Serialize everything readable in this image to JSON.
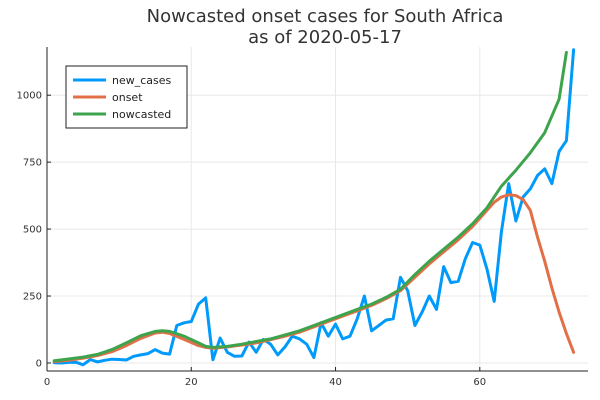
{
  "chart_data": {
    "type": "line",
    "title_line1": "Nowcasted onset cases for South Africa",
    "title_line2": "as of 2020-05-17",
    "xlabel": "",
    "ylabel": "",
    "xlim": [
      0,
      75
    ],
    "ylim": [
      -30,
      1180
    ],
    "xticks": [
      0,
      20,
      40,
      60
    ],
    "yticks": [
      0,
      250,
      500,
      750,
      1000
    ],
    "grid": true,
    "legend_position": "top-left",
    "series": [
      {
        "name": "new_cases",
        "color": "#009AFA",
        "x": [
          1,
          2,
          3,
          4,
          5,
          6,
          7,
          8,
          9,
          10,
          11,
          12,
          13,
          14,
          15,
          16,
          17,
          18,
          19,
          20,
          21,
          22,
          23,
          24,
          25,
          26,
          27,
          28,
          29,
          30,
          31,
          32,
          33,
          34,
          35,
          36,
          37,
          38,
          39,
          40,
          41,
          42,
          43,
          44,
          45,
          46,
          47,
          48,
          49,
          50,
          51,
          52,
          53,
          54,
          55,
          56,
          57,
          58,
          59,
          60,
          61,
          62,
          63,
          64,
          65,
          66,
          67,
          68,
          69,
          70,
          71,
          72,
          73
        ],
        "y": [
          1,
          0,
          2,
          3,
          -7,
          13,
          4,
          10,
          14,
          13,
          11,
          25,
          30,
          35,
          50,
          37,
          33,
          140,
          150,
          155,
          220,
          243,
          12,
          93,
          40,
          25,
          26,
          78,
          40,
          88,
          70,
          30,
          60,
          100,
          90,
          70,
          20,
          150,
          100,
          145,
          90,
          100,
          165,
          250,
          120,
          140,
          160,
          165,
          320,
          270,
          140,
          190,
          250,
          200,
          360,
          300,
          305,
          390,
          450,
          440,
          350,
          230,
          490,
          670,
          530,
          620,
          650,
          700,
          725,
          670,
          790,
          830,
          1170
        ]
      },
      {
        "name": "onset",
        "color": "#E26F46",
        "x": [
          1,
          3,
          5,
          7,
          9,
          11,
          13,
          15,
          16,
          17,
          19,
          21,
          22,
          23,
          25,
          27,
          29,
          31,
          33,
          35,
          37,
          39,
          41,
          43,
          45,
          47,
          49,
          51,
          53,
          55,
          57,
          59,
          61,
          62,
          63,
          64,
          65,
          66,
          67,
          68,
          69,
          70,
          71,
          72,
          73
        ],
        "y": [
          5,
          10,
          18,
          28,
          42,
          65,
          92,
          112,
          115,
          110,
          88,
          65,
          58,
          55,
          60,
          67,
          75,
          87,
          100,
          115,
          135,
          155,
          175,
          195,
          215,
          240,
          270,
          320,
          370,
          415,
          460,
          510,
          570,
          600,
          620,
          628,
          625,
          610,
          570,
          470,
          380,
          280,
          190,
          110,
          40
        ]
      },
      {
        "name": "nowcasted",
        "color": "#3DA44D",
        "x": [
          1,
          3,
          5,
          7,
          9,
          11,
          13,
          15,
          16,
          17,
          19,
          21,
          22,
          23,
          25,
          27,
          29,
          31,
          33,
          35,
          37,
          39,
          41,
          43,
          45,
          47,
          49,
          51,
          53,
          55,
          57,
          59,
          61,
          63,
          65,
          67,
          69,
          71,
          72
        ],
        "y": [
          8,
          15,
          22,
          32,
          50,
          75,
          102,
          118,
          120,
          118,
          100,
          75,
          62,
          58,
          62,
          70,
          80,
          90,
          105,
          120,
          140,
          160,
          180,
          200,
          220,
          245,
          275,
          330,
          380,
          425,
          470,
          520,
          580,
          660,
          720,
          785,
          860,
          985,
          1160
        ]
      }
    ]
  }
}
